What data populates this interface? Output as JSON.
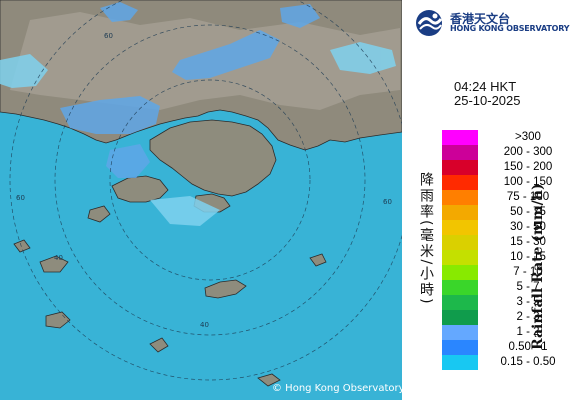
{
  "map": {
    "range_labels": [
      "60",
      "60",
      "40",
      "60",
      "40"
    ],
    "copyright": "© Hong Kong Observatory",
    "colors": {
      "sea": "#38b3d6",
      "land": "#8f8a7c",
      "rain_light": "#5fa7e8",
      "rain_cyan": "#7fd2ef",
      "ring": "#1c3a52"
    }
  },
  "branding": {
    "name_zh": "香港天文台",
    "name_en": "HONG KONG OBSERVATORY",
    "logo_icon": "hko-logo-icon"
  },
  "timestamp": {
    "time": "04:24 HKT",
    "date": "25-10-2025"
  },
  "legend": {
    "unit_en": "Rainfall Rate (mm/h)",
    "unit_zh": "降雨率(毫米/小時)",
    "items": [
      {
        "label": ">300",
        "color": "#ff00ff"
      },
      {
        "label": "200 - 300",
        "color": "#cc0099"
      },
      {
        "label": "150 - 200",
        "color": "#d8002a"
      },
      {
        "label": "100 - 150",
        "color": "#ff2a00"
      },
      {
        "label": "75 - 100",
        "color": "#ff7f00"
      },
      {
        "label": "50 - 75",
        "color": "#f3a900"
      },
      {
        "label": "30 - 50",
        "color": "#f2c500"
      },
      {
        "label": "15 - 30",
        "color": "#dad000"
      },
      {
        "label": "10 - 15",
        "color": "#c4e000"
      },
      {
        "label": "7 - 10",
        "color": "#88ea00"
      },
      {
        "label": "5 - 7",
        "color": "#3ad62a"
      },
      {
        "label": "3 - 5",
        "color": "#1db84b"
      },
      {
        "label": "2 - 3",
        "color": "#109c4c"
      },
      {
        "label": "1 - 2",
        "color": "#64a8ff"
      },
      {
        "label": "0.50 - 1",
        "color": "#2a86ff"
      },
      {
        "label": "0.15 - 0.50",
        "color": "#18c8f2"
      }
    ]
  }
}
